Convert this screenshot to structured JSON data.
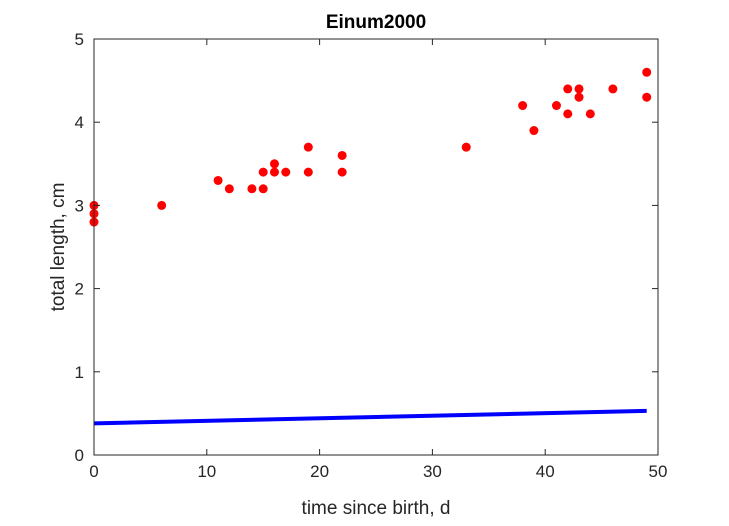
{
  "chart_data": {
    "type": "scatter",
    "title": "Einum2000",
    "xlabel": "time since birth, d",
    "ylabel": "total length, cm",
    "xlim": [
      0,
      50
    ],
    "ylim": [
      0,
      5
    ],
    "xticks": [
      "0",
      "10",
      "20",
      "30",
      "40",
      "50"
    ],
    "yticks": [
      "0",
      "1",
      "2",
      "3",
      "4",
      "5"
    ],
    "grid": false,
    "box": true,
    "series": [
      {
        "type": "scatter",
        "color": "#ff0000",
        "marker": "filled-circle",
        "points": [
          [
            0,
            3.0
          ],
          [
            0,
            2.9
          ],
          [
            0,
            2.8
          ],
          [
            6,
            3.0
          ],
          [
            11,
            3.3
          ],
          [
            12,
            3.2
          ],
          [
            14,
            3.2
          ],
          [
            15,
            3.4
          ],
          [
            15,
            3.2
          ],
          [
            16,
            3.5
          ],
          [
            16,
            3.4
          ],
          [
            17,
            3.4
          ],
          [
            19,
            3.7
          ],
          [
            19,
            3.4
          ],
          [
            22,
            3.6
          ],
          [
            22,
            3.4
          ],
          [
            33,
            3.7
          ],
          [
            38,
            4.2
          ],
          [
            39,
            3.9
          ],
          [
            41,
            4.2
          ],
          [
            42,
            4.4
          ],
          [
            42,
            4.1
          ],
          [
            43,
            4.4
          ],
          [
            43,
            4.3
          ],
          [
            44,
            4.1
          ],
          [
            46,
            4.4
          ],
          [
            49,
            4.6
          ],
          [
            49,
            4.3
          ]
        ]
      },
      {
        "type": "line",
        "color": "#0000ff",
        "x": [
          0,
          49
        ],
        "y": [
          0.38,
          0.53
        ]
      }
    ]
  }
}
